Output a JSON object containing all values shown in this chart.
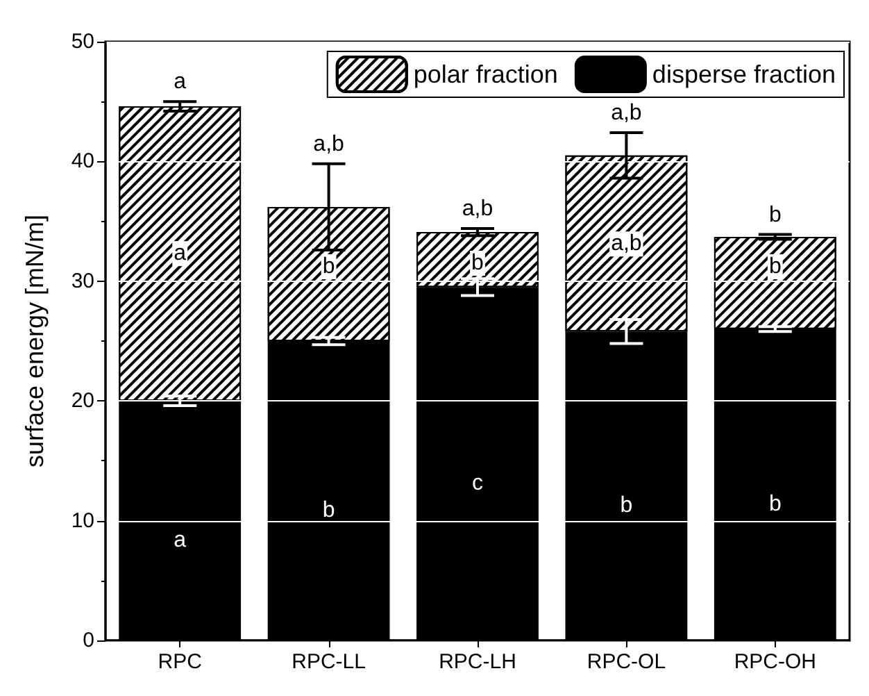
{
  "chart_data": {
    "type": "bar",
    "stacked": true,
    "ylabel": "surface energy [mN/m]",
    "categories": [
      "RPC",
      "RPC-LL",
      "RPC-LH",
      "RPC-OL",
      "RPC-OH"
    ],
    "series": [
      {
        "name": "disperse fraction",
        "color": "#000000",
        "values": [
          20.0,
          25.0,
          29.5,
          25.8,
          26.0
        ],
        "errors": [
          0.4,
          0.3,
          0.7,
          1.0,
          0.2
        ],
        "value_labels": [
          "a",
          "b",
          "c",
          "b",
          "b"
        ]
      },
      {
        "name": "polar fraction",
        "color": "#ffffff",
        "values": [
          24.6,
          11.2,
          4.6,
          14.7,
          7.7
        ],
        "errors": [
          0.4,
          3.6,
          0.3,
          1.9,
          0.2
        ]
      }
    ],
    "ylim": [
      0,
      50
    ],
    "yticks": [
      0,
      10,
      20,
      30,
      40,
      50
    ],
    "grid": "y",
    "legend": "top right",
    "annotations": [
      {
        "text": "a",
        "x": "RPC",
        "y": 44.6
      },
      {
        "text": "a,b",
        "x": "RPC-LL",
        "y": 36.2
      },
      {
        "text": "a,b",
        "x": "RPC-LH",
        "y": 34.1
      },
      {
        "text": "a,b",
        "x": "RPC-OL",
        "y": 40.5
      },
      {
        "text": "b",
        "x": "RPC-OH",
        "y": 33.7
      },
      {
        "text": "a",
        "x": "RPC",
        "y": 32.3
      },
      {
        "text": "b",
        "x": "RPC-LL",
        "y": 31.2
      },
      {
        "text": "b",
        "x": "RPC-LH",
        "y": 31.5
      },
      {
        "text": "a,b",
        "x": "RPC-OL",
        "y": 33.1
      },
      {
        "text": "b",
        "x": "RPC-OH",
        "y": 31.2
      }
    ]
  }
}
